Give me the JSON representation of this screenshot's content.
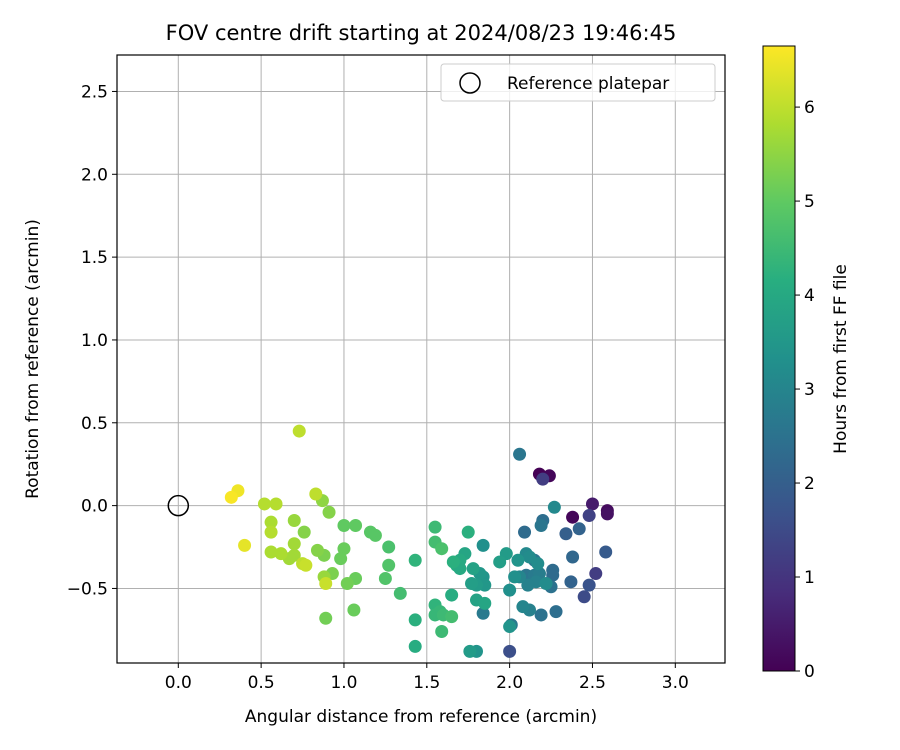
{
  "chart_data": {
    "type": "scatter",
    "title": "FOV centre drift starting at 2024/08/23 19:46:45",
    "xlabel": "Angular distance from reference (arcmin)",
    "ylabel": "Rotation from reference (arcmin)",
    "xlim": [
      -0.37,
      3.3
    ],
    "ylim": [
      -0.95,
      2.72
    ],
    "xticks": [
      0.0,
      0.5,
      1.0,
      1.5,
      2.0,
      2.5,
      3.0
    ],
    "xtick_labels": [
      "0.0",
      "0.5",
      "1.0",
      "1.5",
      "2.0",
      "2.5",
      "3.0"
    ],
    "yticks": [
      -0.5,
      0.0,
      0.5,
      1.0,
      1.5,
      2.0,
      2.5
    ],
    "ytick_labels": [
      "−0.5",
      "0.0",
      "0.5",
      "1.0",
      "1.5",
      "2.0",
      "2.5"
    ],
    "grid": true,
    "legend": {
      "position": "top-right",
      "entries": [
        "Reference platepar"
      ]
    },
    "reference_point": {
      "x": 0.0,
      "y": 0.0
    },
    "colorbar": {
      "label": "Hours from first FF file",
      "range": [
        0,
        6.65
      ],
      "ticks": [
        0,
        1,
        2,
        3,
        4,
        5,
        6
      ],
      "tick_labels": [
        "0",
        "1",
        "2",
        "3",
        "4",
        "5",
        "6"
      ],
      "colormap": "viridis"
    },
    "points": [
      {
        "x": 2.18,
        "y": 0.19,
        "h": 0.0
      },
      {
        "x": 2.24,
        "y": 0.18,
        "h": 0.1
      },
      {
        "x": 2.38,
        "y": -0.07,
        "h": 0.1
      },
      {
        "x": 2.59,
        "y": -0.03,
        "h": 0.2
      },
      {
        "x": 2.59,
        "y": -0.05,
        "h": 0.3
      },
      {
        "x": 2.5,
        "y": 0.01,
        "h": 0.5
      },
      {
        "x": 2.2,
        "y": 0.16,
        "h": 1.2
      },
      {
        "x": 2.48,
        "y": -0.06,
        "h": 1.3
      },
      {
        "x": 2.52,
        "y": -0.41,
        "h": 1.2
      },
      {
        "x": 2.45,
        "y": -0.55,
        "h": 1.5
      },
      {
        "x": 2.48,
        "y": -0.48,
        "h": 1.7
      },
      {
        "x": 2.0,
        "y": -0.88,
        "h": 1.6
      },
      {
        "x": 2.58,
        "y": -0.28,
        "h": 1.9
      },
      {
        "x": 2.34,
        "y": -0.17,
        "h": 2.0
      },
      {
        "x": 2.42,
        "y": -0.14,
        "h": 2.1
      },
      {
        "x": 2.38,
        "y": -0.31,
        "h": 2.2
      },
      {
        "x": 2.37,
        "y": -0.46,
        "h": 2.1
      },
      {
        "x": 2.26,
        "y": -0.39,
        "h": 2.3
      },
      {
        "x": 2.26,
        "y": -0.42,
        "h": 2.3
      },
      {
        "x": 2.25,
        "y": -0.49,
        "h": 2.5
      },
      {
        "x": 2.28,
        "y": -0.64,
        "h": 2.4
      },
      {
        "x": 2.19,
        "y": -0.66,
        "h": 2.5
      },
      {
        "x": 2.09,
        "y": -0.16,
        "h": 2.3
      },
      {
        "x": 2.2,
        "y": -0.09,
        "h": 2.4
      },
      {
        "x": 2.19,
        "y": -0.12,
        "h": 2.6
      },
      {
        "x": 2.06,
        "y": 0.31,
        "h": 2.6
      },
      {
        "x": 2.01,
        "y": -0.72,
        "h": 2.7
      },
      {
        "x": 1.84,
        "y": -0.65,
        "h": 2.7
      },
      {
        "x": 2.15,
        "y": -0.33,
        "h": 2.6
      },
      {
        "x": 2.1,
        "y": -0.42,
        "h": 2.6
      },
      {
        "x": 2.15,
        "y": -0.42,
        "h": 2.7
      },
      {
        "x": 2.18,
        "y": -0.41,
        "h": 2.8
      },
      {
        "x": 2.16,
        "y": -0.46,
        "h": 2.9
      },
      {
        "x": 2.11,
        "y": -0.48,
        "h": 2.9
      },
      {
        "x": 2.12,
        "y": -0.63,
        "h": 2.9
      },
      {
        "x": 2.06,
        "y": -0.43,
        "h": 3.0
      },
      {
        "x": 2.08,
        "y": -0.61,
        "h": 3.0
      },
      {
        "x": 2.27,
        "y": -0.01,
        "h": 3.1
      },
      {
        "x": 2.1,
        "y": -0.29,
        "h": 3.1
      },
      {
        "x": 2.12,
        "y": -0.31,
        "h": 3.2
      },
      {
        "x": 2.17,
        "y": -0.35,
        "h": 3.2
      },
      {
        "x": 2.22,
        "y": -0.47,
        "h": 3.2
      },
      {
        "x": 2.03,
        "y": -0.43,
        "h": 3.3
      },
      {
        "x": 2.0,
        "y": -0.51,
        "h": 3.3
      },
      {
        "x": 2.05,
        "y": -0.33,
        "h": 3.4
      },
      {
        "x": 1.84,
        "y": -0.24,
        "h": 3.3
      },
      {
        "x": 1.8,
        "y": -0.88,
        "h": 3.4
      },
      {
        "x": 1.84,
        "y": -0.43,
        "h": 3.4
      },
      {
        "x": 1.82,
        "y": -0.41,
        "h": 3.5
      },
      {
        "x": 1.85,
        "y": -0.48,
        "h": 3.5
      },
      {
        "x": 1.8,
        "y": -0.48,
        "h": 3.6
      },
      {
        "x": 2.0,
        "y": -0.73,
        "h": 3.4
      },
      {
        "x": 1.98,
        "y": -0.29,
        "h": 3.6
      },
      {
        "x": 1.94,
        "y": -0.34,
        "h": 3.7
      },
      {
        "x": 1.76,
        "y": -0.88,
        "h": 3.6
      },
      {
        "x": 1.77,
        "y": -0.47,
        "h": 3.7
      },
      {
        "x": 1.78,
        "y": -0.38,
        "h": 3.8
      },
      {
        "x": 1.8,
        "y": -0.57,
        "h": 3.8
      },
      {
        "x": 1.85,
        "y": -0.59,
        "h": 3.9
      },
      {
        "x": 1.73,
        "y": -0.29,
        "h": 3.9
      },
      {
        "x": 1.7,
        "y": -0.33,
        "h": 4.0
      },
      {
        "x": 1.68,
        "y": -0.36,
        "h": 4.1
      },
      {
        "x": 1.7,
        "y": -0.38,
        "h": 4.0
      },
      {
        "x": 1.66,
        "y": -0.34,
        "h": 4.2
      },
      {
        "x": 1.65,
        "y": -0.54,
        "h": 4.1
      },
      {
        "x": 1.75,
        "y": -0.16,
        "h": 4.2
      },
      {
        "x": 1.43,
        "y": -0.85,
        "h": 4.1
      },
      {
        "x": 1.43,
        "y": -0.69,
        "h": 4.2
      },
      {
        "x": 1.43,
        "y": -0.33,
        "h": 4.3
      },
      {
        "x": 1.55,
        "y": -0.6,
        "h": 4.3
      },
      {
        "x": 1.55,
        "y": -0.66,
        "h": 4.4
      },
      {
        "x": 1.58,
        "y": -0.64,
        "h": 4.4
      },
      {
        "x": 1.6,
        "y": -0.66,
        "h": 4.5
      },
      {
        "x": 1.59,
        "y": -0.76,
        "h": 4.5
      },
      {
        "x": 1.65,
        "y": -0.67,
        "h": 4.6
      },
      {
        "x": 1.55,
        "y": -0.13,
        "h": 4.5
      },
      {
        "x": 1.55,
        "y": -0.22,
        "h": 4.6
      },
      {
        "x": 1.59,
        "y": -0.26,
        "h": 4.7
      },
      {
        "x": 1.34,
        "y": -0.53,
        "h": 4.6
      },
      {
        "x": 1.27,
        "y": -0.25,
        "h": 4.7
      },
      {
        "x": 1.27,
        "y": -0.36,
        "h": 4.8
      },
      {
        "x": 1.25,
        "y": -0.44,
        "h": 4.8
      },
      {
        "x": 1.19,
        "y": -0.18,
        "h": 4.9
      },
      {
        "x": 1.16,
        "y": -0.16,
        "h": 4.9
      },
      {
        "x": 1.07,
        "y": -0.12,
        "h": 5.0
      },
      {
        "x": 1.0,
        "y": -0.12,
        "h": 5.0
      },
      {
        "x": 1.0,
        "y": -0.26,
        "h": 5.1
      },
      {
        "x": 0.98,
        "y": -0.32,
        "h": 5.1
      },
      {
        "x": 1.07,
        "y": -0.44,
        "h": 5.1
      },
      {
        "x": 1.02,
        "y": -0.47,
        "h": 5.2
      },
      {
        "x": 1.06,
        "y": -0.63,
        "h": 5.1
      },
      {
        "x": 0.89,
        "y": -0.68,
        "h": 5.2
      },
      {
        "x": 0.93,
        "y": -0.41,
        "h": 5.3
      },
      {
        "x": 0.88,
        "y": -0.3,
        "h": 5.3
      },
      {
        "x": 0.84,
        "y": -0.27,
        "h": 5.4
      },
      {
        "x": 0.76,
        "y": -0.16,
        "h": 5.4
      },
      {
        "x": 0.91,
        "y": -0.04,
        "h": 5.4
      },
      {
        "x": 0.87,
        "y": 0.03,
        "h": 5.5
      },
      {
        "x": 0.88,
        "y": -0.43,
        "h": 5.6
      },
      {
        "x": 0.7,
        "y": -0.09,
        "h": 5.6
      },
      {
        "x": 0.7,
        "y": -0.23,
        "h": 5.7
      },
      {
        "x": 0.7,
        "y": -0.3,
        "h": 5.7
      },
      {
        "x": 0.67,
        "y": -0.32,
        "h": 5.7
      },
      {
        "x": 0.62,
        "y": -0.29,
        "h": 5.8
      },
      {
        "x": 0.56,
        "y": -0.28,
        "h": 5.8
      },
      {
        "x": 0.56,
        "y": -0.1,
        "h": 5.8
      },
      {
        "x": 0.56,
        "y": -0.16,
        "h": 5.9
      },
      {
        "x": 0.52,
        "y": 0.01,
        "h": 5.9
      },
      {
        "x": 0.59,
        "y": 0.01,
        "h": 5.9
      },
      {
        "x": 0.73,
        "y": 0.45,
        "h": 6.0
      },
      {
        "x": 0.83,
        "y": 0.07,
        "h": 6.0
      },
      {
        "x": 0.75,
        "y": -0.35,
        "h": 6.0
      },
      {
        "x": 0.77,
        "y": -0.36,
        "h": 6.1
      },
      {
        "x": 0.89,
        "y": -0.47,
        "h": 6.1
      },
      {
        "x": 0.4,
        "y": -0.24,
        "h": 6.4
      },
      {
        "x": 0.36,
        "y": 0.09,
        "h": 6.5
      },
      {
        "x": 0.32,
        "y": 0.05,
        "h": 6.6
      }
    ]
  }
}
